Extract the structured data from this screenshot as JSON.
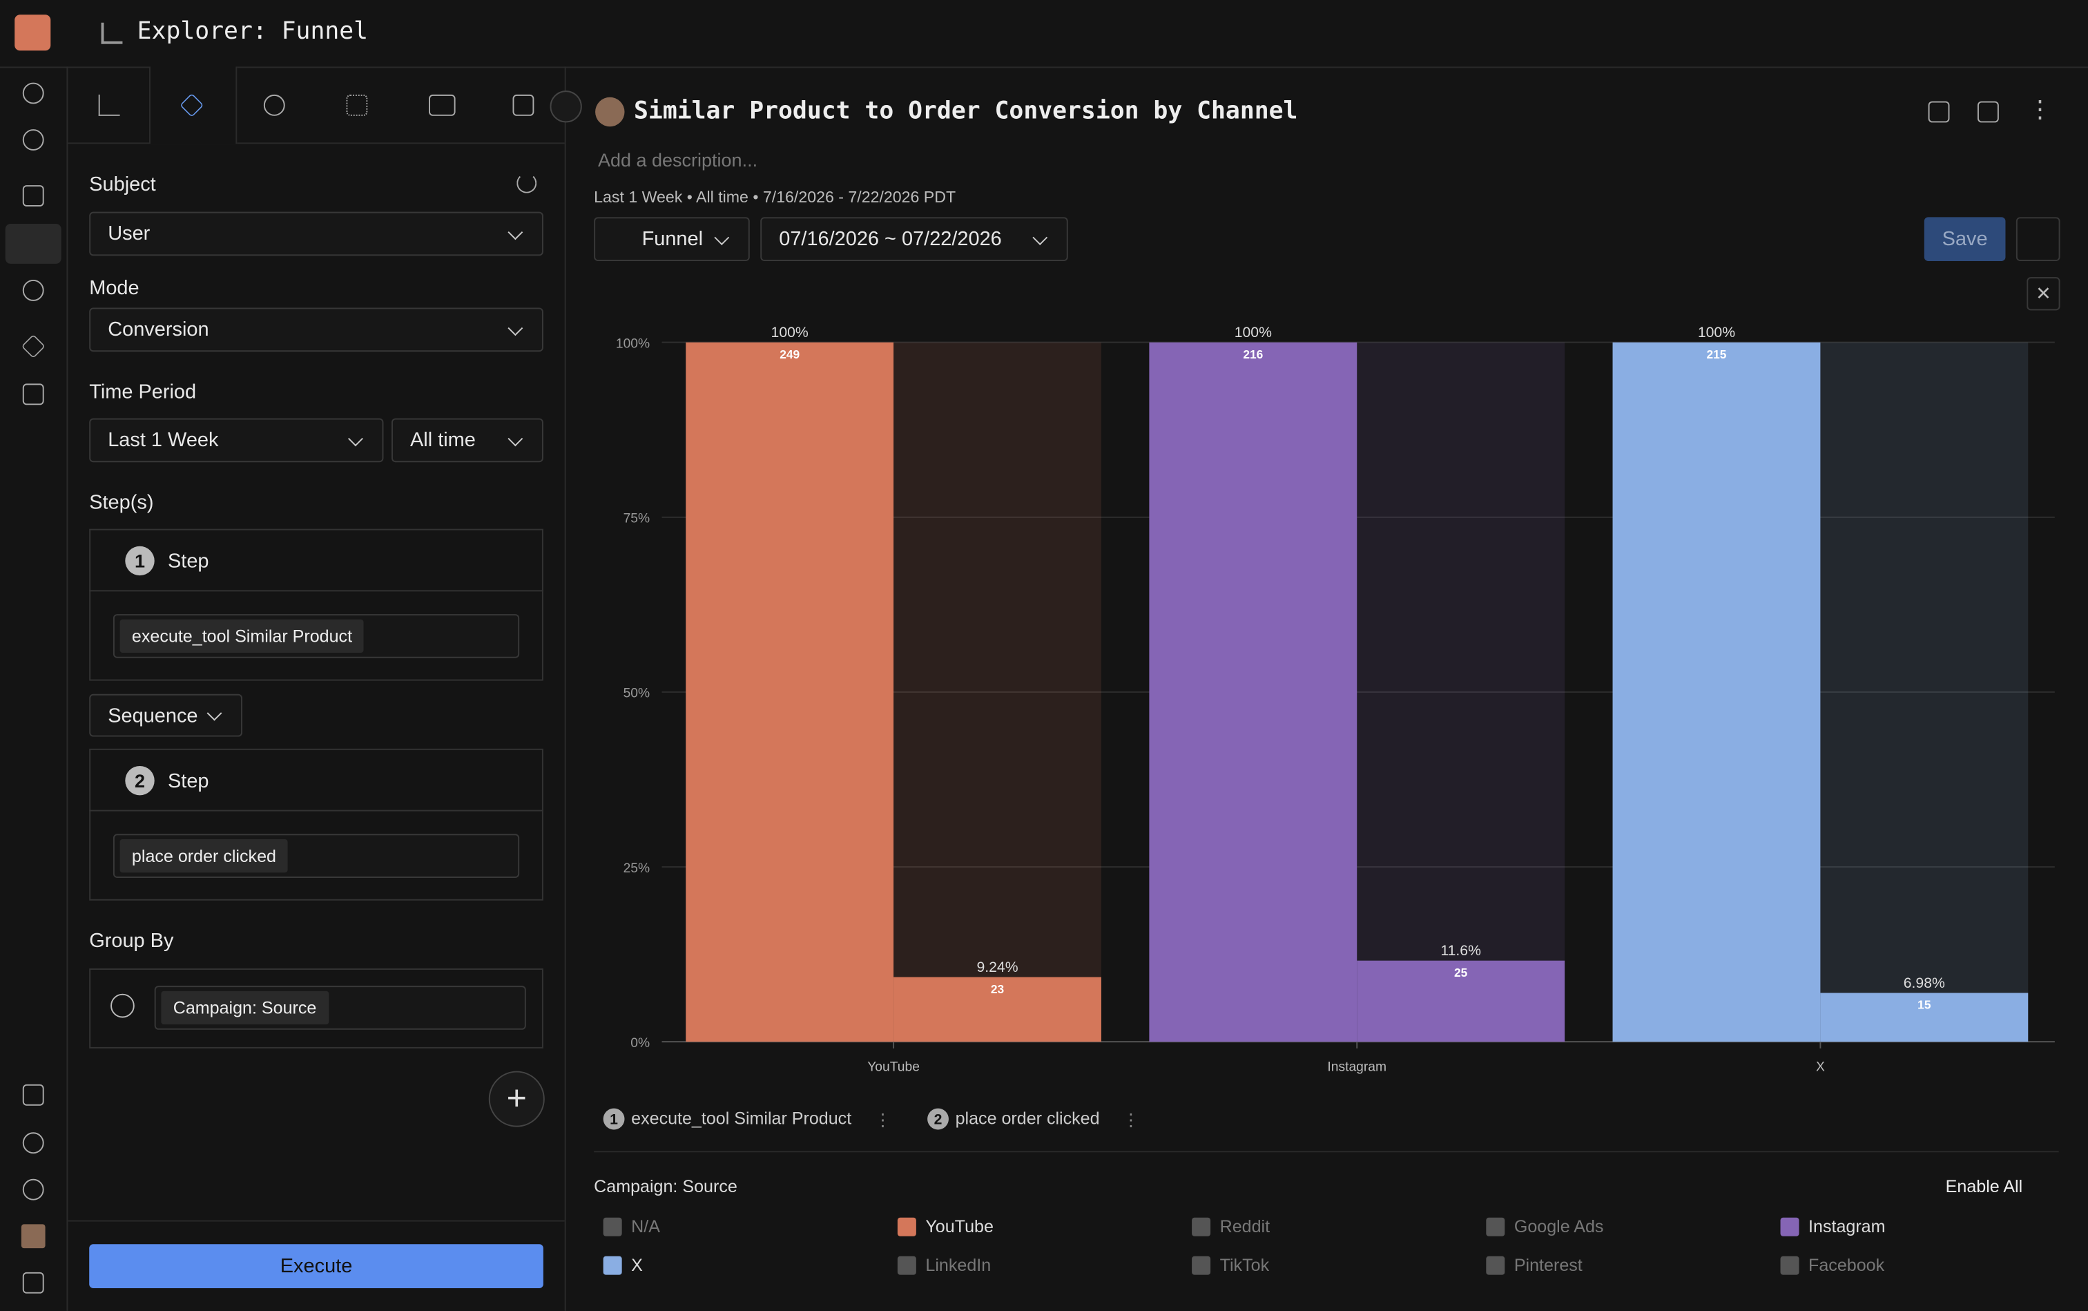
{
  "app": {
    "title": "Explorer: Funnel"
  },
  "sidebar": {
    "subject_label": "Subject",
    "subject": "User",
    "mode_label": "Mode",
    "mode": "Conversion",
    "time_period_label": "Time Period",
    "period": "Last 1 Week",
    "range": "All time",
    "steps_label": "Step(s)",
    "steps": [
      {
        "number": "1",
        "label": "Step",
        "event": "execute_tool Similar Product"
      },
      {
        "number": "2",
        "label": "Step",
        "event": "place order clicked"
      }
    ],
    "sequence": "Sequence",
    "group_by_label": "Group By",
    "group_by": "Campaign: Source",
    "execute": "Execute"
  },
  "header": {
    "title": "Similar Product to Order Conversion by Channel",
    "description_placeholder": "Add a description...",
    "summary": "Last 1 Week • All time • 7/16/2026 - 7/22/2026 PDT",
    "chart_type": "Funnel",
    "date_range": "07/16/2026 ~ 07/22/2026",
    "save": "Save"
  },
  "chart_data": {
    "type": "bar",
    "categories": [
      "YouTube",
      "Instagram",
      "X"
    ],
    "colors": [
      "#d4775a",
      "#8565b5",
      "#8aaee3"
    ],
    "series": [
      {
        "name": "execute_tool Similar Product",
        "values": [
          100,
          100,
          100
        ],
        "value_labels": [
          "100%",
          "100%",
          "100%"
        ],
        "counts": [
          249,
          216,
          215
        ]
      },
      {
        "name": "place order clicked",
        "values": [
          9.24,
          11.6,
          6.98
        ],
        "value_labels": [
          "9.24%",
          "11.6%",
          "6.98%"
        ],
        "counts": [
          23,
          25,
          15
        ]
      }
    ],
    "ylim": [
      0,
      100
    ],
    "yticks": [
      {
        "value": 0,
        "label": "0%"
      },
      {
        "value": 25,
        "label": "25%"
      },
      {
        "value": 50,
        "label": "50%"
      },
      {
        "value": 75,
        "label": "75%"
      },
      {
        "value": 100,
        "label": "100%"
      }
    ],
    "grid": true
  },
  "legend": {
    "title": "Campaign: Source",
    "enable_all": "Enable All",
    "items": [
      {
        "name": "N/A",
        "color": "#555555"
      },
      {
        "name": "YouTube",
        "color": "#d4775a"
      },
      {
        "name": "Reddit",
        "color": "#555555"
      },
      {
        "name": "Google Ads",
        "color": "#555555"
      },
      {
        "name": "Instagram",
        "color": "#8565b5"
      },
      {
        "name": "X",
        "color": "#8aaee3"
      },
      {
        "name": "LinkedIn",
        "color": "#555555"
      },
      {
        "name": "TikTok",
        "color": "#555555"
      },
      {
        "name": "Pinterest",
        "color": "#555555"
      },
      {
        "name": "Facebook",
        "color": "#555555"
      }
    ]
  }
}
